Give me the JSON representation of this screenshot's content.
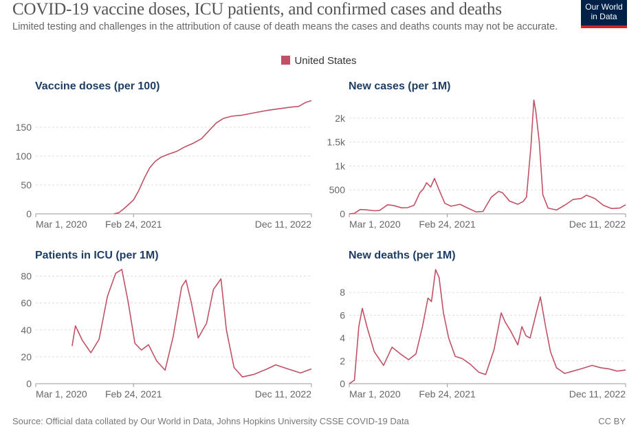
{
  "header": {
    "title": "COVID-19 vaccine doses, ICU patients, and confirmed cases and deaths",
    "subtitle": "Limited testing and challenges in the attribution of cause of death means the cases and deaths counts may not be accurate.",
    "logo_text": "Our World in Data",
    "logo_colors": {
      "background": "#002147",
      "underline": "#ce261e"
    }
  },
  "legend": {
    "label": "United States",
    "color": "#c15065"
  },
  "footer": {
    "source": "Source: Official data collated by Our World in Data, Johns Hopkins University CSSE COVID-19 Data",
    "license": "CC BY"
  },
  "chart_data": [
    {
      "type": "line",
      "title": "Vaccine doses (per 100)",
      "series_name": "United States",
      "ylim": [
        0,
        200
      ],
      "yticks": [
        0,
        50,
        100,
        150
      ],
      "ytick_labels": [
        "0",
        "50",
        "100",
        "150"
      ],
      "xlim": [
        "2020-03-01",
        "2022-12-11"
      ],
      "xticks": [
        "2020-03-01",
        "2021-02-24",
        "2022-12-11"
      ],
      "xtick_labels": [
        "Mar 1, 2020",
        "Feb 24, 2021",
        "Dec 11, 2022"
      ],
      "points": [
        [
          "2020-12-14",
          0
        ],
        [
          "2021-01-01",
          2
        ],
        [
          "2021-01-20",
          9
        ],
        [
          "2021-02-10",
          18
        ],
        [
          "2021-02-24",
          24
        ],
        [
          "2021-03-15",
          40
        ],
        [
          "2021-04-05",
          62
        ],
        [
          "2021-04-25",
          80
        ],
        [
          "2021-05-15",
          91
        ],
        [
          "2021-06-05",
          98
        ],
        [
          "2021-07-01",
          103
        ],
        [
          "2021-08-01",
          108
        ],
        [
          "2021-09-01",
          116
        ],
        [
          "2021-10-01",
          122
        ],
        [
          "2021-11-01",
          130
        ],
        [
          "2021-12-01",
          145
        ],
        [
          "2021-12-25",
          157
        ],
        [
          "2022-01-20",
          165
        ],
        [
          "2022-02-20",
          169
        ],
        [
          "2022-04-01",
          171
        ],
        [
          "2022-05-15",
          175
        ],
        [
          "2022-07-01",
          179
        ],
        [
          "2022-08-15",
          182
        ],
        [
          "2022-10-01",
          185
        ],
        [
          "2022-10-25",
          186
        ],
        [
          "2022-11-20",
          193
        ],
        [
          "2022-12-11",
          196
        ]
      ]
    },
    {
      "type": "line",
      "title": "New cases (per 1M)",
      "series_name": "United States",
      "ylim": [
        0,
        2500
      ],
      "yticks": [
        0,
        500,
        1000,
        1500,
        2000
      ],
      "ytick_labels": [
        "0",
        "500",
        "1k",
        "1.5k",
        "2k"
      ],
      "xlim": [
        "2020-03-01",
        "2022-12-11"
      ],
      "xticks": [
        "2020-03-01",
        "2021-02-24",
        "2022-12-11"
      ],
      "xtick_labels": [
        "Mar 1, 2020",
        "Feb 24, 2021",
        "Dec 11, 2022"
      ],
      "points": [
        [
          "2020-03-01",
          0
        ],
        [
          "2020-03-20",
          10
        ],
        [
          "2020-04-10",
          90
        ],
        [
          "2020-05-01",
          85
        ],
        [
          "2020-06-01",
          65
        ],
        [
          "2020-06-20",
          70
        ],
        [
          "2020-07-20",
          190
        ],
        [
          "2020-08-10",
          175
        ],
        [
          "2020-09-10",
          125
        ],
        [
          "2020-10-01",
          130
        ],
        [
          "2020-10-25",
          180
        ],
        [
          "2020-11-15",
          440
        ],
        [
          "2020-11-28",
          520
        ],
        [
          "2020-12-10",
          650
        ],
        [
          "2020-12-25",
          560
        ],
        [
          "2021-01-08",
          740
        ],
        [
          "2021-01-25",
          500
        ],
        [
          "2021-02-15",
          220
        ],
        [
          "2021-03-10",
          160
        ],
        [
          "2021-04-12",
          200
        ],
        [
          "2021-05-10",
          120
        ],
        [
          "2021-06-10",
          40
        ],
        [
          "2021-07-05",
          50
        ],
        [
          "2021-08-05",
          350
        ],
        [
          "2021-09-01",
          470
        ],
        [
          "2021-09-15",
          440
        ],
        [
          "2021-10-10",
          270
        ],
        [
          "2021-11-10",
          200
        ],
        [
          "2021-11-30",
          260
        ],
        [
          "2021-12-12",
          350
        ],
        [
          "2021-12-28",
          1400
        ],
        [
          "2022-01-08",
          2380
        ],
        [
          "2022-01-15",
          2150
        ],
        [
          "2022-01-28",
          1500
        ],
        [
          "2022-02-10",
          400
        ],
        [
          "2022-03-01",
          120
        ],
        [
          "2022-04-01",
          80
        ],
        [
          "2022-05-01",
          180
        ],
        [
          "2022-06-01",
          300
        ],
        [
          "2022-07-01",
          320
        ],
        [
          "2022-07-20",
          390
        ],
        [
          "2022-08-20",
          320
        ],
        [
          "2022-09-20",
          180
        ],
        [
          "2022-10-20",
          110
        ],
        [
          "2022-11-20",
          120
        ],
        [
          "2022-12-11",
          190
        ]
      ]
    },
    {
      "type": "line",
      "title": "Patients in ICU (per 1M)",
      "series_name": "United States",
      "ylim": [
        0,
        90
      ],
      "yticks": [
        0,
        20,
        40,
        60,
        80
      ],
      "ytick_labels": [
        "0",
        "20",
        "40",
        "60",
        "80"
      ],
      "xlim": [
        "2020-03-01",
        "2022-12-11"
      ],
      "xticks": [
        "2020-03-01",
        "2021-02-24",
        "2022-12-11"
      ],
      "xtick_labels": [
        "Mar 1, 2020",
        "Feb 24, 2021",
        "Dec 11, 2022"
      ],
      "points": [
        [
          "2020-07-13",
          28
        ],
        [
          "2020-07-25",
          43
        ],
        [
          "2020-08-20",
          32
        ],
        [
          "2020-09-20",
          23
        ],
        [
          "2020-10-20",
          33
        ],
        [
          "2020-11-20",
          65
        ],
        [
          "2020-12-20",
          82
        ],
        [
          "2021-01-12",
          85
        ],
        [
          "2021-02-05",
          60
        ],
        [
          "2021-03-01",
          30
        ],
        [
          "2021-03-25",
          25
        ],
        [
          "2021-04-20",
          29
        ],
        [
          "2021-05-20",
          17
        ],
        [
          "2021-06-20",
          10
        ],
        [
          "2021-07-20",
          35
        ],
        [
          "2021-08-20",
          72
        ],
        [
          "2021-09-05",
          77
        ],
        [
          "2021-09-25",
          60
        ],
        [
          "2021-10-20",
          34
        ],
        [
          "2021-11-20",
          45
        ],
        [
          "2021-12-15",
          70
        ],
        [
          "2022-01-12",
          78
        ],
        [
          "2022-02-01",
          40
        ],
        [
          "2022-03-01",
          12
        ],
        [
          "2022-04-01",
          5
        ],
        [
          "2022-05-15",
          7
        ],
        [
          "2022-07-01",
          11
        ],
        [
          "2022-08-01",
          14
        ],
        [
          "2022-09-15",
          11
        ],
        [
          "2022-11-01",
          8
        ],
        [
          "2022-12-11",
          11
        ]
      ]
    },
    {
      "type": "line",
      "title": "New deaths (per 1M)",
      "series_name": "United States",
      "ylim": [
        0,
        10
      ],
      "yticks": [
        0,
        2,
        4,
        6,
        8
      ],
      "ytick_labels": [
        "0",
        "2",
        "4",
        "6",
        "8"
      ],
      "xlim": [
        "2020-03-01",
        "2022-12-11"
      ],
      "xticks": [
        "2020-03-01",
        "2021-02-24",
        "2022-12-11"
      ],
      "xtick_labels": [
        "Mar 1, 2020",
        "Feb 24, 2021",
        "Dec 11, 2022"
      ],
      "points": [
        [
          "2020-03-01",
          0
        ],
        [
          "2020-03-20",
          0.3
        ],
        [
          "2020-04-05",
          5
        ],
        [
          "2020-04-18",
          6.6
        ],
        [
          "2020-05-05",
          5
        ],
        [
          "2020-06-01",
          2.8
        ],
        [
          "2020-07-05",
          1.6
        ],
        [
          "2020-08-05",
          3.2
        ],
        [
          "2020-09-05",
          2.6
        ],
        [
          "2020-10-05",
          2.1
        ],
        [
          "2020-11-01",
          2.6
        ],
        [
          "2020-11-25",
          5
        ],
        [
          "2020-12-15",
          7.5
        ],
        [
          "2020-12-28",
          7.2
        ],
        [
          "2021-01-12",
          10
        ],
        [
          "2021-01-25",
          9.3
        ],
        [
          "2021-02-10",
          6.2
        ],
        [
          "2021-03-01",
          4
        ],
        [
          "2021-03-25",
          2.4
        ],
        [
          "2021-04-20",
          2.2
        ],
        [
          "2021-05-20",
          1.7
        ],
        [
          "2021-06-20",
          1
        ],
        [
          "2021-07-15",
          0.8
        ],
        [
          "2021-08-15",
          3
        ],
        [
          "2021-09-10",
          6.2
        ],
        [
          "2021-09-25",
          5.4
        ],
        [
          "2021-10-15",
          4.6
        ],
        [
          "2021-11-10",
          3.4
        ],
        [
          "2021-11-25",
          5
        ],
        [
          "2021-12-10",
          4.2
        ],
        [
          "2021-12-25",
          4
        ],
        [
          "2022-01-20",
          6.5
        ],
        [
          "2022-02-01",
          7.6
        ],
        [
          "2022-02-20",
          5
        ],
        [
          "2022-03-10",
          2.8
        ],
        [
          "2022-04-01",
          1.4
        ],
        [
          "2022-05-01",
          0.9
        ],
        [
          "2022-06-01",
          1.1
        ],
        [
          "2022-07-01",
          1.3
        ],
        [
          "2022-08-10",
          1.6
        ],
        [
          "2022-09-10",
          1.4
        ],
        [
          "2022-10-10",
          1.3
        ],
        [
          "2022-11-10",
          1.1
        ],
        [
          "2022-12-11",
          1.2
        ]
      ]
    }
  ]
}
